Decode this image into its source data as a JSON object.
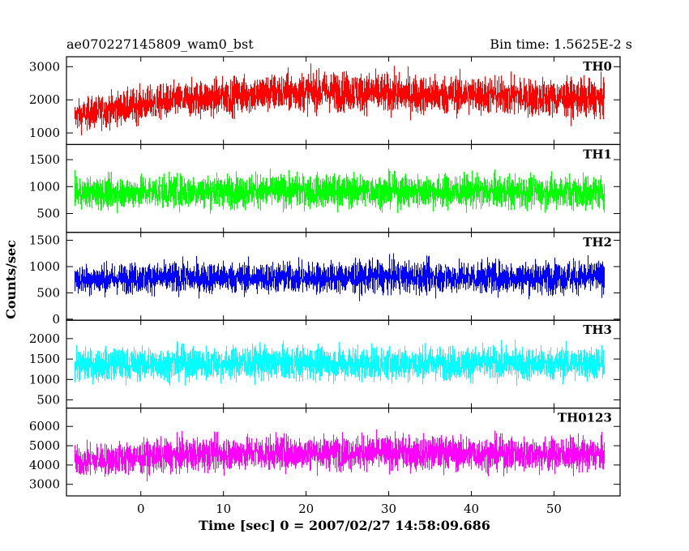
{
  "header": {
    "title_left": "ae070227145809_wam0_bst",
    "title_right": "Bin time: 1.5625E-2 s"
  },
  "chart_data": {
    "type": "line",
    "xlabel": "Time [sec] 0 = 2007/02/27 14:58:09.686",
    "ylabel": "Counts/sec",
    "xlim": [
      -9,
      58
    ],
    "x_ticks": [
      0,
      10,
      20,
      30,
      40,
      50
    ],
    "x_data_range": [
      -8.0,
      56.0
    ],
    "grid": false,
    "panels": [
      {
        "name": "TH0",
        "color": "#ff0000",
        "ylim": [
          650,
          3300
        ],
        "y_ticks": [
          1000,
          2000,
          3000
        ],
        "envelope": {
          "x": [
            -8,
            -4,
            0,
            5,
            10,
            15,
            20,
            25,
            30,
            35,
            40,
            45,
            50,
            56
          ],
          "mean": [
            1500,
            1700,
            1850,
            2000,
            2100,
            2200,
            2250,
            2250,
            2200,
            2150,
            2150,
            2100,
            2050,
            2050
          ],
          "spread": [
            450,
            480,
            500,
            520,
            550,
            560,
            570,
            580,
            580,
            570,
            560,
            560,
            550,
            550
          ]
        }
      },
      {
        "name": "TH1",
        "color": "#00ff00",
        "ylim": [
          150,
          1780
        ],
        "y_ticks": [
          500,
          1000,
          1500
        ],
        "envelope": {
          "x": [
            -8,
            0,
            10,
            20,
            30,
            40,
            50,
            56
          ],
          "mean": [
            880,
            900,
            920,
            920,
            920,
            910,
            900,
            900
          ],
          "spread": [
            280,
            290,
            300,
            300,
            300,
            300,
            300,
            300
          ]
        }
      },
      {
        "name": "TH2",
        "color": "#0000ff",
        "ylim": [
          -20,
          1650
        ],
        "y_ticks": [
          0,
          500,
          1000,
          1500
        ],
        "envelope": {
          "x": [
            -8,
            0,
            10,
            20,
            30,
            40,
            50,
            56
          ],
          "mean": [
            760,
            780,
            790,
            790,
            800,
            800,
            800,
            800
          ],
          "spread": [
            270,
            280,
            290,
            290,
            300,
            300,
            300,
            300
          ]
        }
      },
      {
        "name": "TH3",
        "color": "#00ffff",
        "ylim": [
          300,
          2450
        ],
        "y_ticks": [
          500,
          1000,
          1500,
          2000
        ],
        "envelope": {
          "x": [
            -8,
            0,
            10,
            20,
            30,
            40,
            50,
            56
          ],
          "mean": [
            1350,
            1380,
            1400,
            1400,
            1400,
            1400,
            1390,
            1390
          ],
          "spread": [
            380,
            390,
            400,
            400,
            400,
            400,
            400,
            400
          ]
        }
      },
      {
        "name": "TH0123",
        "color": "#ff00ff",
        "ylim": [
          2400,
          6950
        ],
        "y_ticks": [
          3000,
          4000,
          5000,
          6000
        ],
        "envelope": {
          "x": [
            -8,
            0,
            10,
            20,
            30,
            40,
            50,
            56
          ],
          "mean": [
            4200,
            4400,
            4600,
            4650,
            4650,
            4600,
            4550,
            4550
          ],
          "spread": [
            800,
            820,
            850,
            860,
            860,
            860,
            850,
            850
          ]
        }
      }
    ]
  }
}
